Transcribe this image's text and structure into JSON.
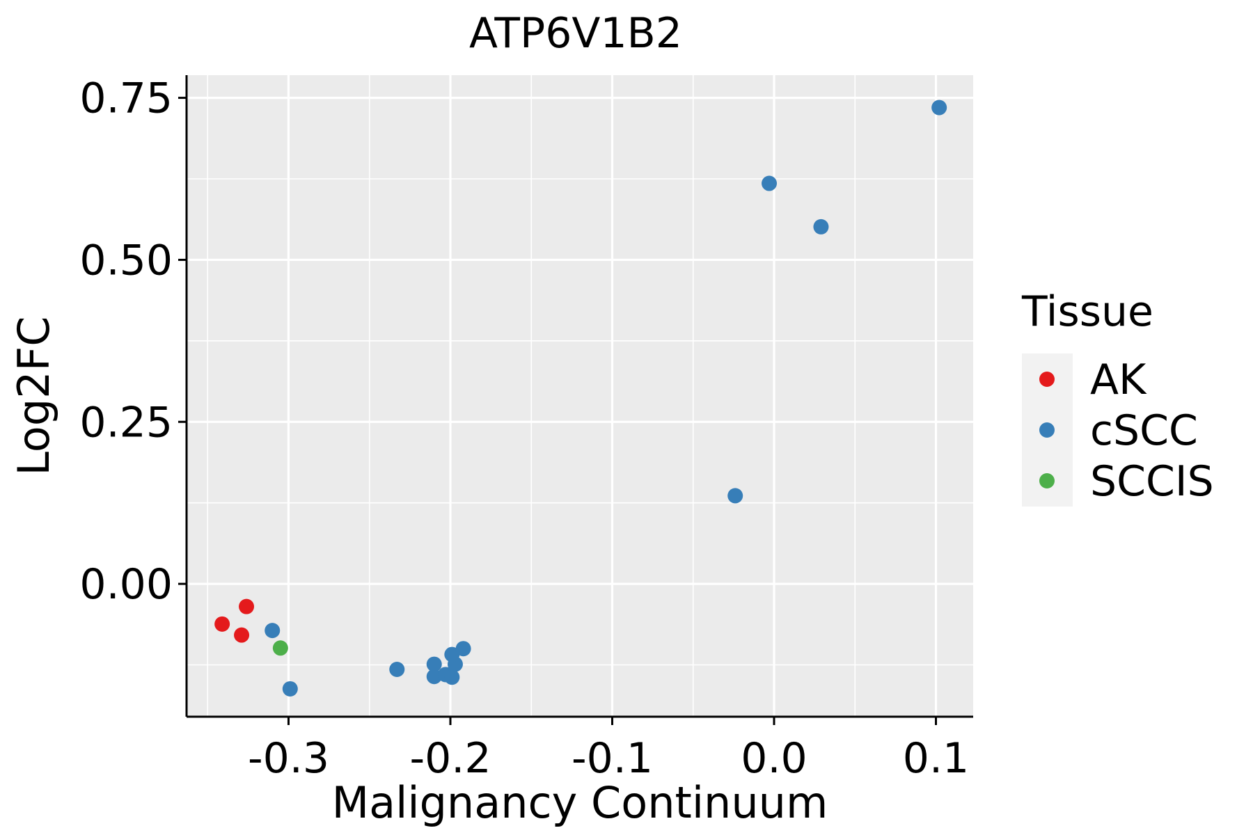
{
  "chart_data": {
    "type": "scatter",
    "title": "ATP6V1B2",
    "xlabel": "Malignancy Continuum",
    "ylabel": "Log2FC",
    "xlim": [
      -0.363,
      0.123
    ],
    "ylim": [
      -0.205,
      0.785
    ],
    "x_ticks": [
      -0.3,
      -0.2,
      -0.1,
      0.0,
      0.1
    ],
    "x_tick_labels": [
      "-0.3",
      "-0.2",
      "-0.1",
      "0.0",
      "0.1"
    ],
    "y_ticks": [
      0.0,
      0.25,
      0.5,
      0.75
    ],
    "y_tick_labels": [
      "0.00",
      "0.25",
      "0.50",
      "0.75"
    ],
    "grid": true,
    "background_color": "#EBEBEB",
    "legend": {
      "title": "Tissue",
      "position": "right",
      "entries": [
        {
          "name": "AK",
          "color": "#E41A1C"
        },
        {
          "name": "cSCC",
          "color": "#377EB8"
        },
        {
          "name": "SCCIS",
          "color": "#4DAF4A"
        }
      ]
    },
    "series": [
      {
        "name": "AK",
        "color": "#E41A1C",
        "points": [
          {
            "x": -0.341,
            "y": -0.062
          },
          {
            "x": -0.326,
            "y": -0.035
          },
          {
            "x": -0.329,
            "y": -0.079
          }
        ]
      },
      {
        "name": "cSCC",
        "color": "#377EB8",
        "points": [
          {
            "x": -0.31,
            "y": -0.072
          },
          {
            "x": -0.299,
            "y": -0.162
          },
          {
            "x": -0.233,
            "y": -0.132
          },
          {
            "x": -0.21,
            "y": -0.124
          },
          {
            "x": -0.21,
            "y": -0.143
          },
          {
            "x": -0.203,
            "y": -0.14
          },
          {
            "x": -0.199,
            "y": -0.144
          },
          {
            "x": -0.197,
            "y": -0.124
          },
          {
            "x": -0.199,
            "y": -0.109
          },
          {
            "x": -0.192,
            "y": -0.1
          },
          {
            "x": -0.024,
            "y": 0.136
          },
          {
            "x": -0.003,
            "y": 0.618
          },
          {
            "x": 0.029,
            "y": 0.551
          },
          {
            "x": 0.102,
            "y": 0.735
          }
        ]
      },
      {
        "name": "SCCIS",
        "color": "#4DAF4A",
        "points": [
          {
            "x": -0.305,
            "y": -0.099
          }
        ]
      }
    ]
  }
}
